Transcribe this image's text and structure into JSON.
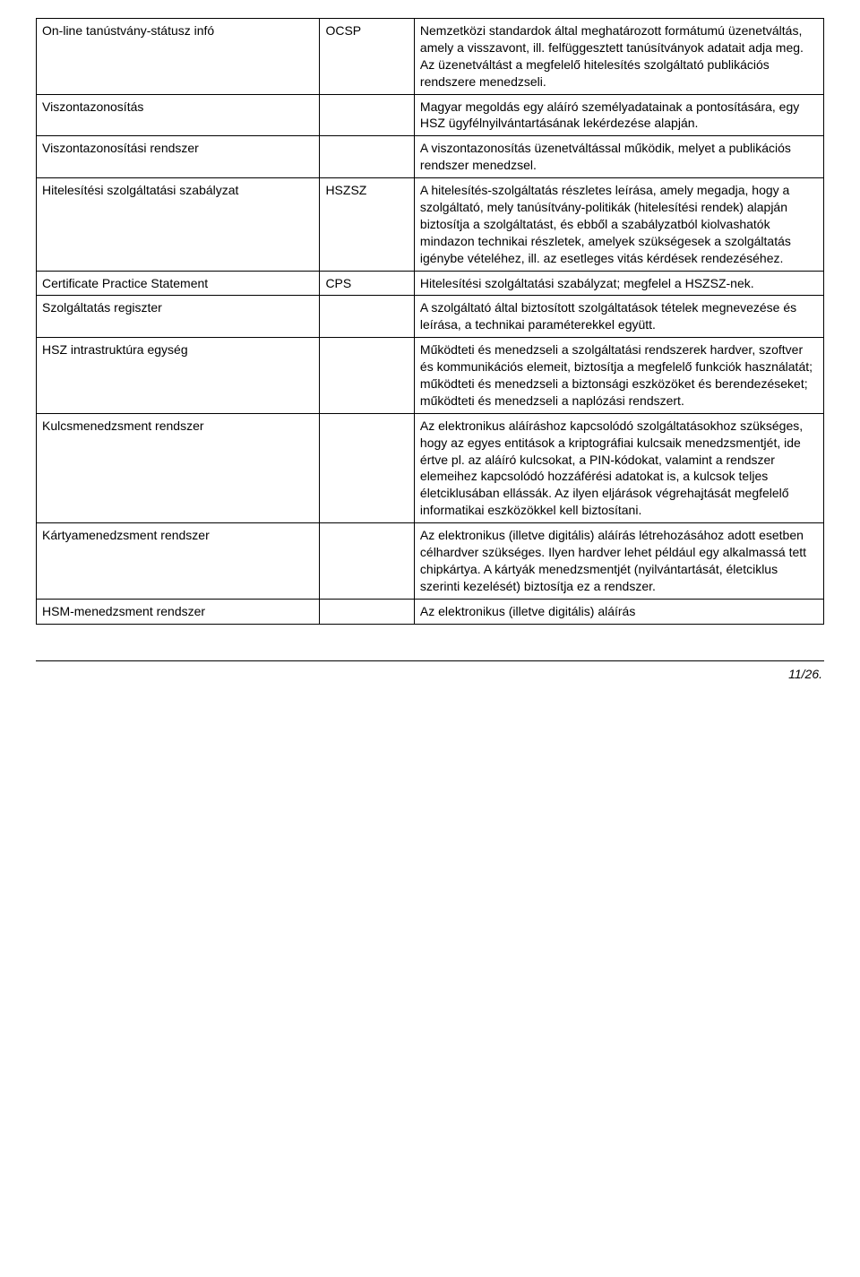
{
  "table": {
    "rows": [
      {
        "term": "On-line tanústvány-státusz infó",
        "abbr": "OCSP",
        "desc": "Nemzetközi standardok által meghatározott formátumú üzenetváltás, amely a visszavont, ill. felfüggesztett tanúsítványok adatait adja meg. Az üzenetváltást a megfelelő hitelesítés szolgáltató publikációs rendszere menedzseli."
      },
      {
        "term": "Viszontazonosítás",
        "abbr": "",
        "desc": "Magyar megoldás egy aláíró személyadatainak a pontosítására, egy HSZ ügyfélnyilvántartásának lekérdezése alapján."
      },
      {
        "term": "Viszontazonosítási rendszer",
        "abbr": "",
        "desc": "A viszontazonosítás üzenetváltással működik, melyet a publikációs rendszer menedzsel."
      },
      {
        "term": "Hitelesítési szolgáltatási szabályzat",
        "abbr": "HSZSZ",
        "desc": "A hitelesítés-szolgáltatás részletes leírása, amely megadja, hogy a szolgáltató, mely tanúsítvány-politikák (hitelesítési rendek) alapján biztosítja a szolgáltatást, és ebből a szabályzatból kiolvashatók mindazon technikai részletek, amelyek szükségesek a szolgáltatás igénybe vételéhez, ill. az esetleges vitás kérdések rendezéséhez."
      },
      {
        "term": "Certificate Practice Statement",
        "abbr": "CPS",
        "desc": "Hitelesítési szolgáltatási szabályzat; megfelel a HSZSZ-nek."
      },
      {
        "term": "Szolgáltatás regiszter",
        "abbr": "",
        "desc": "A szolgáltató által biztosított szolgáltatások tételek megnevezése és leírása, a technikai paraméterekkel együtt."
      },
      {
        "term": "HSZ intrastruktúra egység",
        "abbr": "",
        "desc": "Működteti és menedzseli a szolgáltatási rendszerek hardver, szoftver és kommunikációs elemeit, biztosítja a megfelelő funkciók használatát; működteti és menedzseli a biztonsági eszközöket és berendezéseket; működteti és menedzseli a naplózási rendszert."
      },
      {
        "term": "Kulcsmenedzsment rendszer",
        "abbr": "",
        "desc": "Az elektronikus aláíráshoz kapcsolódó szolgáltatásokhoz szükséges, hogy az egyes entitások a kriptográfiai kulcsaik menedzsmentjét, ide értve pl. az aláíró kulcsokat, a PIN-kódokat, valamint a rendszer elemeihez kapcsolódó hozzáférési adatokat is, a kulcsok teljes életciklusában ellássák. Az ilyen eljárások végrehajtását megfelelő informatikai eszközökkel kell biztosítani."
      },
      {
        "term": "Kártyamenedzsment rendszer",
        "abbr": "",
        "desc": "Az elektronikus (illetve digitális) aláírás létrehozásához adott esetben célhardver szükséges. Ilyen hardver lehet például egy alkalmassá tett chipkártya. A kártyák menedzsmentjét (nyilvántartását, életciklus szerinti kezelését) biztosítja ez a rendszer."
      },
      {
        "term": "HSM-menedzsment rendszer",
        "abbr": "",
        "desc": "Az elektronikus (illetve digitális) aláírás"
      }
    ]
  },
  "page_number": "11/26."
}
